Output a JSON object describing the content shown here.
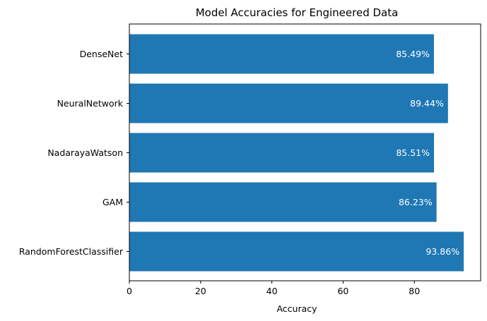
{
  "chart_data": {
    "type": "bar",
    "orientation": "horizontal",
    "title": "Model Accuracies for Engineered Data",
    "xlabel": "Accuracy",
    "ylabel": "",
    "categories": [
      "DenseNet",
      "NeuralNetwork",
      "NadarayaWatson",
      "GAM",
      "RandomForestClassifier"
    ],
    "values": [
      85.49,
      89.44,
      85.51,
      86.23,
      93.86
    ],
    "data_labels": [
      "85.49%",
      "89.44%",
      "85.51%",
      "86.23%",
      "93.86%"
    ],
    "xlim": [
      0,
      98.6
    ],
    "xticks": [
      0,
      20,
      40,
      60,
      80
    ],
    "grid": false,
    "colors": {
      "bar": "#1f77b4",
      "data_label": "#ffffff",
      "axis": "#000000"
    }
  }
}
